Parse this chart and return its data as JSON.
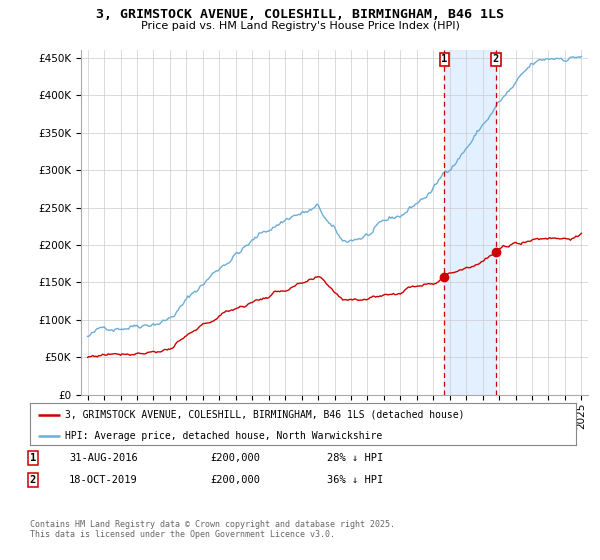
{
  "title": "3, GRIMSTOCK AVENUE, COLESHILL, BIRMINGHAM, B46 1LS",
  "subtitle": "Price paid vs. HM Land Registry's House Price Index (HPI)",
  "yticks": [
    0,
    50000,
    100000,
    150000,
    200000,
    250000,
    300000,
    350000,
    400000,
    450000
  ],
  "ytick_labels": [
    "£0",
    "£50K",
    "£100K",
    "£150K",
    "£200K",
    "£250K",
    "£300K",
    "£350K",
    "£400K",
    "£450K"
  ],
  "hpi_color": "#6baed6",
  "price_color": "#cc0000",
  "marker1_year": 2016.67,
  "marker2_year": 2019.8,
  "sale1_price_val": 200000,
  "sale2_price_val": 200000,
  "sale1_date": "31-AUG-2016",
  "sale1_price": "£200,000",
  "sale1_note": "28% ↓ HPI",
  "sale2_date": "18-OCT-2019",
  "sale2_price": "£200,000",
  "sale2_note": "36% ↓ HPI",
  "legend_line1": "3, GRIMSTOCK AVENUE, COLESHILL, BIRMINGHAM, B46 1LS (detached house)",
  "legend_line2": "HPI: Average price, detached house, North Warwickshire",
  "footer": "Contains HM Land Registry data © Crown copyright and database right 2025.\nThis data is licensed under the Open Government Licence v3.0.",
  "bg_color": "#ffffff",
  "highlight_color": "#ddeeff"
}
